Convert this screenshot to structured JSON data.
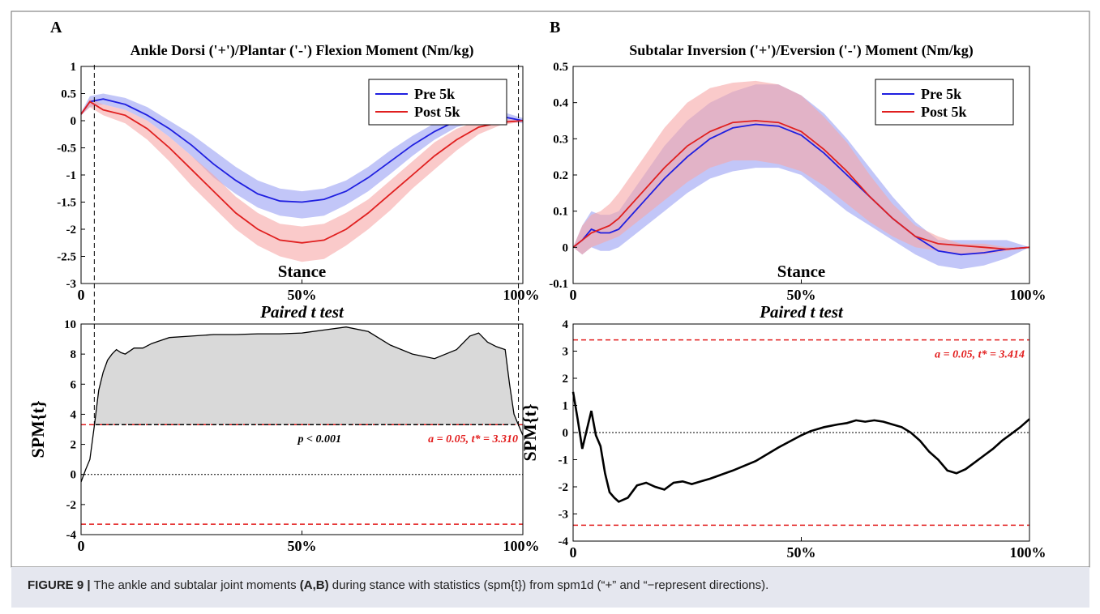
{
  "figure": {
    "caption_label": "FIGURE 9 |",
    "caption_pre": "The ankle and subtalar joint moments",
    "caption_bold": "(A,B)",
    "caption_post": "during stance with statistics (spm{t}) from spm1d (“+” and “−represent directions).",
    "panel_a_letter": "A",
    "panel_b_letter": "B"
  },
  "chart_data": [
    {
      "id": "A-top",
      "type": "line",
      "title": "Ankle Dorsi ('+')/Plantar ('-') Flexion Moment (Nm/kg)",
      "xlabel": "Stance",
      "x_tick_labels": [
        "0",
        "50%",
        "100%"
      ],
      "y_ticks": [
        1,
        0.5,
        0,
        -0.5,
        -1,
        -1.5,
        -2,
        -2.5,
        -3
      ],
      "xlim": [
        0,
        100
      ],
      "ylim": [
        -3,
        1
      ],
      "legend_position": "top-right",
      "vlines": [
        3,
        99
      ],
      "x": [
        0,
        2,
        5,
        10,
        15,
        20,
        25,
        30,
        35,
        40,
        45,
        50,
        55,
        60,
        65,
        70,
        75,
        80,
        85,
        90,
        95,
        100
      ],
      "series": [
        {
          "name": "Pre 5k",
          "color": "#1f1fe0",
          "band_color": "#9aa0f4",
          "mean": [
            0.12,
            0.35,
            0.4,
            0.3,
            0.1,
            -0.15,
            -0.45,
            -0.8,
            -1.1,
            -1.35,
            -1.48,
            -1.5,
            -1.45,
            -1.3,
            -1.05,
            -0.75,
            -0.45,
            -0.2,
            0.0,
            0.1,
            0.08,
            0.0
          ],
          "upper": [
            0.15,
            0.45,
            0.5,
            0.42,
            0.25,
            0.0,
            -0.25,
            -0.55,
            -0.85,
            -1.1,
            -1.25,
            -1.3,
            -1.25,
            -1.1,
            -0.85,
            -0.55,
            -0.28,
            -0.05,
            0.12,
            0.2,
            0.17,
            0.05
          ],
          "lower": [
            0.1,
            0.25,
            0.3,
            0.2,
            0.0,
            -0.3,
            -0.65,
            -1.05,
            -1.35,
            -1.6,
            -1.75,
            -1.8,
            -1.75,
            -1.55,
            -1.3,
            -0.98,
            -0.65,
            -0.35,
            -0.12,
            0.0,
            0.0,
            -0.05
          ]
        },
        {
          "name": "Post 5k",
          "color": "#e01f1f",
          "band_color": "#f7a6a6",
          "mean": [
            0.12,
            0.35,
            0.2,
            0.1,
            -0.15,
            -0.5,
            -0.9,
            -1.3,
            -1.7,
            -2.0,
            -2.2,
            -2.25,
            -2.2,
            -2.0,
            -1.7,
            -1.35,
            -1.0,
            -0.65,
            -0.35,
            -0.12,
            -0.03,
            0.0
          ],
          "upper": [
            0.15,
            0.4,
            0.3,
            0.2,
            0.0,
            -0.3,
            -0.65,
            -1.0,
            -1.4,
            -1.7,
            -1.9,
            -1.95,
            -1.9,
            -1.7,
            -1.45,
            -1.1,
            -0.75,
            -0.4,
            -0.15,
            0.0,
            0.03,
            0.02
          ],
          "lower": [
            0.1,
            0.25,
            0.1,
            -0.05,
            -0.35,
            -0.75,
            -1.2,
            -1.6,
            -2.0,
            -2.3,
            -2.5,
            -2.6,
            -2.55,
            -2.3,
            -2.0,
            -1.65,
            -1.25,
            -0.9,
            -0.55,
            -0.25,
            -0.08,
            -0.02
          ]
        }
      ]
    },
    {
      "id": "A-bottom",
      "type": "area",
      "title": "Paired t test",
      "ylabel": "SPM{t}",
      "x_tick_labels": [
        "0",
        "50%",
        "100%"
      ],
      "y_ticks": [
        10,
        8,
        6,
        4,
        2,
        0,
        -2,
        -4
      ],
      "xlim": [
        0,
        100
      ],
      "ylim": [
        -4,
        10
      ],
      "threshold": 3.31,
      "threshold_label": "a = 0.05, t* = 3.310",
      "p_label": "p < 0.001",
      "shaded_region": [
        3,
        99
      ],
      "x": [
        0,
        1,
        2,
        3,
        4,
        5,
        6,
        7,
        8,
        9,
        10,
        12,
        14,
        16,
        18,
        20,
        25,
        30,
        35,
        40,
        45,
        50,
        55,
        60,
        65,
        70,
        75,
        80,
        85,
        88,
        90,
        92,
        94,
        96,
        97,
        98,
        99,
        100
      ],
      "y": [
        -0.5,
        0.3,
        1.0,
        3.2,
        5.6,
        6.8,
        7.6,
        8.0,
        8.3,
        8.1,
        8.0,
        8.4,
        8.4,
        8.7,
        8.9,
        9.1,
        9.2,
        9.3,
        9.3,
        9.35,
        9.35,
        9.4,
        9.6,
        9.8,
        9.5,
        8.6,
        8.0,
        7.7,
        8.3,
        9.2,
        9.4,
        8.8,
        8.5,
        8.3,
        6.0,
        4.0,
        3.3,
        2.6
      ]
    },
    {
      "id": "B-top",
      "type": "line",
      "title": "Subtalar Inversion ('+')/Eversion ('-') Moment (Nm/kg)",
      "xlabel": "Stance",
      "x_tick_labels": [
        "0",
        "50%",
        "100%"
      ],
      "y_ticks": [
        0.5,
        0.4,
        0.3,
        0.2,
        0.1,
        0,
        -0.1
      ],
      "xlim": [
        0,
        100
      ],
      "ylim": [
        -0.1,
        0.5
      ],
      "legend_position": "top-right",
      "x": [
        0,
        2,
        4,
        6,
        8,
        10,
        15,
        20,
        25,
        30,
        35,
        40,
        45,
        50,
        55,
        60,
        65,
        70,
        75,
        80,
        85,
        90,
        95,
        100
      ],
      "series": [
        {
          "name": "Pre 5k",
          "color": "#1f1fe0",
          "band_color": "#9aa0f4",
          "mean": [
            0.0,
            0.02,
            0.05,
            0.04,
            0.04,
            0.05,
            0.12,
            0.19,
            0.25,
            0.3,
            0.33,
            0.34,
            0.335,
            0.31,
            0.26,
            0.2,
            0.14,
            0.08,
            0.03,
            -0.01,
            -0.02,
            -0.015,
            -0.005,
            0.0
          ],
          "upper": [
            0.0,
            0.06,
            0.1,
            0.09,
            0.09,
            0.1,
            0.19,
            0.28,
            0.35,
            0.4,
            0.43,
            0.45,
            0.45,
            0.42,
            0.37,
            0.3,
            0.22,
            0.14,
            0.07,
            0.02,
            0.02,
            0.02,
            0.02,
            0.0
          ],
          "lower": [
            0.0,
            -0.02,
            0.0,
            -0.01,
            -0.01,
            0.0,
            0.05,
            0.1,
            0.15,
            0.19,
            0.21,
            0.22,
            0.22,
            0.2,
            0.15,
            0.1,
            0.06,
            0.02,
            -0.02,
            -0.05,
            -0.06,
            -0.05,
            -0.03,
            0.0
          ]
        },
        {
          "name": "Post 5k",
          "color": "#e01f1f",
          "band_color": "#f7a6a6",
          "mean": [
            0.0,
            0.02,
            0.04,
            0.05,
            0.06,
            0.08,
            0.15,
            0.22,
            0.28,
            0.32,
            0.345,
            0.35,
            0.345,
            0.32,
            0.27,
            0.21,
            0.14,
            0.08,
            0.03,
            0.01,
            0.005,
            0.0,
            -0.005,
            0.0
          ],
          "upper": [
            0.0,
            0.06,
            0.09,
            0.1,
            0.12,
            0.15,
            0.24,
            0.33,
            0.4,
            0.44,
            0.455,
            0.46,
            0.45,
            0.42,
            0.36,
            0.29,
            0.2,
            0.12,
            0.06,
            0.03,
            0.01,
            0.01,
            0.0,
            0.0
          ],
          "lower": [
            0.0,
            -0.02,
            0.0,
            0.01,
            0.02,
            0.03,
            0.08,
            0.13,
            0.18,
            0.22,
            0.24,
            0.24,
            0.23,
            0.21,
            0.17,
            0.12,
            0.07,
            0.03,
            0.0,
            -0.01,
            -0.02,
            -0.02,
            -0.01,
            0.0
          ]
        }
      ]
    },
    {
      "id": "B-bottom",
      "type": "line",
      "title": "Paired t test",
      "ylabel": "SPM{t}",
      "x_tick_labels": [
        "0",
        "50%",
        "100%"
      ],
      "y_ticks": [
        4,
        3,
        2,
        1,
        0,
        -1,
        -2,
        -3,
        -4
      ],
      "xlim": [
        0,
        100
      ],
      "ylim": [
        -4,
        4
      ],
      "threshold": 3.414,
      "threshold_label": "a = 0.05, t* = 3.414",
      "x": [
        0,
        1,
        2,
        3,
        4,
        5,
        6,
        7,
        8,
        9,
        10,
        12,
        14,
        16,
        18,
        20,
        22,
        24,
        26,
        28,
        30,
        35,
        40,
        45,
        50,
        52,
        55,
        58,
        60,
        62,
        64,
        66,
        68,
        70,
        72,
        74,
        76,
        78,
        80,
        82,
        84,
        86,
        88,
        90,
        92,
        94,
        96,
        98,
        100
      ],
      "y": [
        1.5,
        0.5,
        -0.6,
        0.1,
        0.8,
        -0.1,
        -0.5,
        -1.5,
        -2.2,
        -2.4,
        -2.55,
        -2.4,
        -1.95,
        -1.85,
        -2.0,
        -2.1,
        -1.85,
        -1.8,
        -1.9,
        -1.8,
        -1.7,
        -1.4,
        -1.05,
        -0.55,
        -0.1,
        0.05,
        0.2,
        0.3,
        0.35,
        0.45,
        0.4,
        0.45,
        0.4,
        0.3,
        0.2,
        0.0,
        -0.3,
        -0.7,
        -1.0,
        -1.4,
        -1.5,
        -1.35,
        -1.1,
        -0.85,
        -0.6,
        -0.3,
        -0.05,
        0.2,
        0.5
      ]
    }
  ]
}
